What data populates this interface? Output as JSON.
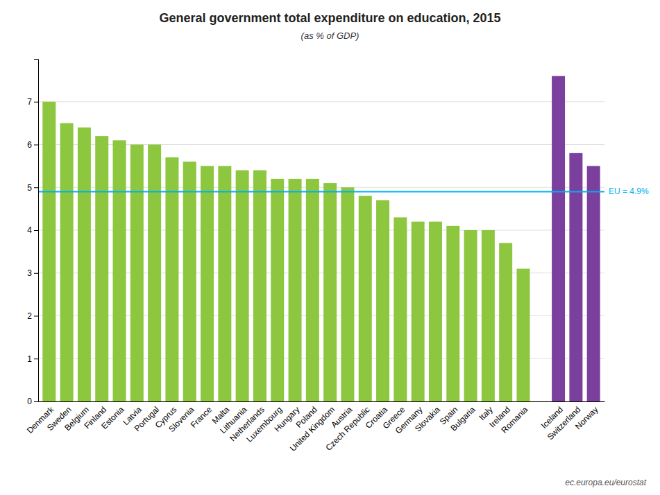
{
  "chart_data": {
    "type": "bar",
    "title": "General government total expenditure on education, 2015",
    "subtitle": "(as % of GDP)",
    "categories": [
      "Denmark",
      "Sweden",
      "Belgium",
      "Finland",
      "Estonia",
      "Latvia",
      "Portugal",
      "Cyprus",
      "Slovenia",
      "France",
      "Malta",
      "Lithuania",
      "Netherlands",
      "Luxembourg",
      "Hungary",
      "Poland",
      "United Kingdom",
      "Austria",
      "Czech Republic",
      "Croatia",
      "Greece",
      "Germany",
      "Slovakia",
      "Spain",
      "Bulgaria",
      "Italy",
      "Ireland",
      "Romania",
      null,
      "Iceland",
      "Switzerland",
      "Norway"
    ],
    "values": [
      7.0,
      6.5,
      6.4,
      6.2,
      6.1,
      6.0,
      6.0,
      5.7,
      5.6,
      5.5,
      5.5,
      5.4,
      5.4,
      5.2,
      5.2,
      5.2,
      5.1,
      5.0,
      4.8,
      4.7,
      4.3,
      4.2,
      4.2,
      4.1,
      4.0,
      4.0,
      3.7,
      3.1,
      null,
      7.6,
      5.8,
      5.5
    ],
    "colors": [
      "#8dc63f",
      "#8dc63f",
      "#8dc63f",
      "#8dc63f",
      "#8dc63f",
      "#8dc63f",
      "#8dc63f",
      "#8dc63f",
      "#8dc63f",
      "#8dc63f",
      "#8dc63f",
      "#8dc63f",
      "#8dc63f",
      "#8dc63f",
      "#8dc63f",
      "#8dc63f",
      "#8dc63f",
      "#8dc63f",
      "#8dc63f",
      "#8dc63f",
      "#8dc63f",
      "#8dc63f",
      "#8dc63f",
      "#8dc63f",
      "#8dc63f",
      "#8dc63f",
      "#8dc63f",
      "#8dc63f",
      null,
      "#7b3f9e",
      "#7b3f9e",
      "#7b3f9e"
    ],
    "ylim": [
      0,
      8.0
    ],
    "yticks": [
      0,
      1,
      2,
      3,
      4,
      5,
      6,
      7
    ],
    "grid": true,
    "annotations": [
      {
        "text": "EU = 4.9%",
        "y": 4.9,
        "color": "#00b0f0"
      },
      {
        "text": "ec.europa.eu/eurostat"
      }
    ]
  }
}
